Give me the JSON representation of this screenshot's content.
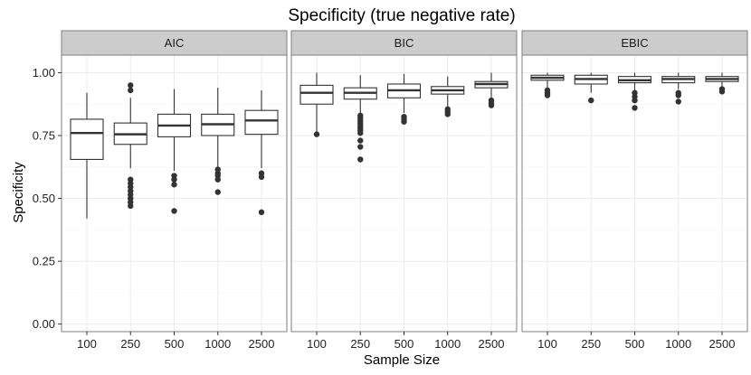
{
  "chart_data": {
    "type": "boxplot",
    "title": "Specificity (true negative rate)",
    "xlabel": "Sample Size",
    "ylabel": "Specificity",
    "ylim": [
      -0.03,
      1.07
    ],
    "yticks": [
      0.0,
      0.25,
      0.5,
      0.75,
      1.0
    ],
    "ytick_labels": [
      "0.00",
      "0.25",
      "0.50",
      "0.75",
      "1.00"
    ],
    "categories": [
      "100",
      "250",
      "500",
      "1000",
      "2500"
    ],
    "colors": {
      "box_fill": "#ffffff",
      "box_line": "#333333",
      "outlier": "#333333",
      "strip": "#cccccc",
      "panel_border": "#7f7f7f",
      "grid_major": "#ebebeb",
      "grid_minor": "#f5f5f5"
    },
    "facets": [
      {
        "name": "AIC",
        "boxes": [
          {
            "category": "100",
            "whisker_low": 0.42,
            "q1": 0.655,
            "median": 0.76,
            "q3": 0.815,
            "whisker_high": 0.92,
            "outliers": []
          },
          {
            "category": "250",
            "whisker_low": 0.62,
            "q1": 0.715,
            "median": 0.755,
            "q3": 0.8,
            "whisker_high": 0.9,
            "outliers": [
              0.95,
              0.93,
              0.575,
              0.56,
              0.545,
              0.53,
              0.515,
              0.5,
              0.485,
              0.47
            ]
          },
          {
            "category": "500",
            "whisker_low": 0.61,
            "q1": 0.745,
            "median": 0.79,
            "q3": 0.835,
            "whisker_high": 0.935,
            "outliers": [
              0.59,
              0.575,
              0.555,
              0.45
            ]
          },
          {
            "category": "1000",
            "whisker_low": 0.62,
            "q1": 0.75,
            "median": 0.795,
            "q3": 0.835,
            "whisker_high": 0.94,
            "outliers": [
              0.615,
              0.6,
              0.59,
              0.575,
              0.525
            ]
          },
          {
            "category": "2500",
            "whisker_low": 0.62,
            "q1": 0.755,
            "median": 0.81,
            "q3": 0.85,
            "whisker_high": 0.93,
            "outliers": [
              0.6,
              0.585,
              0.445
            ]
          }
        ]
      },
      {
        "name": "BIC",
        "boxes": [
          {
            "category": "100",
            "whisker_low": 0.76,
            "q1": 0.875,
            "median": 0.92,
            "q3": 0.95,
            "whisker_high": 1.0,
            "outliers": [
              0.755
            ]
          },
          {
            "category": "250",
            "whisker_low": 0.84,
            "q1": 0.895,
            "median": 0.92,
            "q3": 0.94,
            "whisker_high": 0.99,
            "outliers": [
              0.83,
              0.82,
              0.81,
              0.8,
              0.79,
              0.78,
              0.77,
              0.76,
              0.73,
              0.705,
              0.655
            ]
          },
          {
            "category": "500",
            "whisker_low": 0.84,
            "q1": 0.9,
            "median": 0.93,
            "q3": 0.955,
            "whisker_high": 0.995,
            "outliers": [
              0.825,
              0.815,
              0.805
            ]
          },
          {
            "category": "1000",
            "whisker_low": 0.86,
            "q1": 0.915,
            "median": 0.93,
            "q3": 0.945,
            "whisker_high": 0.985,
            "outliers": [
              0.855,
              0.845,
              0.835
            ]
          },
          {
            "category": "2500",
            "whisker_low": 0.895,
            "q1": 0.94,
            "median": 0.955,
            "q3": 0.965,
            "whisker_high": 1.0,
            "outliers": [
              0.89,
              0.88,
              0.87
            ]
          }
        ]
      },
      {
        "name": "EBIC",
        "boxes": [
          {
            "category": "100",
            "whisker_low": 0.935,
            "q1": 0.97,
            "median": 0.98,
            "q3": 0.99,
            "whisker_high": 1.0,
            "outliers": [
              0.93,
              0.92,
              0.91
            ]
          },
          {
            "category": "250",
            "whisker_low": 0.92,
            "q1": 0.955,
            "median": 0.975,
            "q3": 0.99,
            "whisker_high": 1.0,
            "outliers": [
              0.89
            ]
          },
          {
            "category": "500",
            "whisker_low": 0.93,
            "q1": 0.96,
            "median": 0.97,
            "q3": 0.985,
            "whisker_high": 1.0,
            "outliers": [
              0.92,
              0.905,
              0.89,
              0.86
            ]
          },
          {
            "category": "1000",
            "whisker_low": 0.935,
            "q1": 0.96,
            "median": 0.975,
            "q3": 0.985,
            "whisker_high": 1.0,
            "outliers": [
              0.92,
              0.91,
              0.885
            ]
          },
          {
            "category": "2500",
            "whisker_low": 0.945,
            "q1": 0.965,
            "median": 0.975,
            "q3": 0.985,
            "whisker_high": 1.0,
            "outliers": [
              0.935,
              0.925
            ]
          }
        ]
      }
    ]
  }
}
